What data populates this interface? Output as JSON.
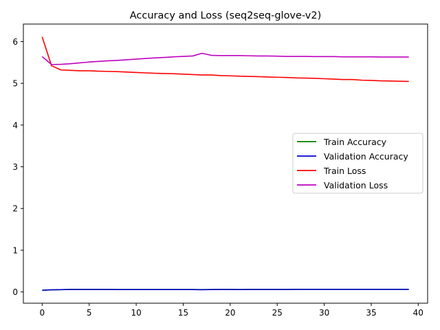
{
  "chart_data": {
    "type": "line",
    "title": "Accuracy and Loss (seq2seq-glove-v2)",
    "xlabel": "",
    "ylabel": "",
    "xlim": [
      -2,
      41
    ],
    "ylim": [
      -0.27,
      6.42
    ],
    "xticks": [
      0,
      5,
      10,
      15,
      20,
      25,
      30,
      35,
      40
    ],
    "yticks": [
      0,
      1,
      2,
      3,
      4,
      5,
      6
    ],
    "grid": false,
    "legend_position": "center-right",
    "x": [
      0,
      1,
      2,
      3,
      4,
      5,
      6,
      7,
      8,
      9,
      10,
      11,
      12,
      13,
      14,
      15,
      16,
      17,
      18,
      19,
      20,
      21,
      22,
      23,
      24,
      25,
      26,
      27,
      28,
      29,
      30,
      31,
      32,
      33,
      34,
      35,
      36,
      37,
      38,
      39
    ],
    "series": [
      {
        "name": "Train Accuracy",
        "color": "#008000",
        "values": [
          0.04,
          0.05,
          0.055,
          0.06,
          0.06,
          0.06,
          0.06,
          0.06,
          0.058,
          0.058,
          0.058,
          0.058,
          0.058,
          0.058,
          0.058,
          0.058,
          0.058,
          0.056,
          0.058,
          0.06,
          0.06,
          0.058,
          0.06,
          0.06,
          0.06,
          0.06,
          0.06,
          0.062,
          0.062,
          0.062,
          0.062,
          0.062,
          0.062,
          0.062,
          0.062,
          0.062,
          0.062,
          0.062,
          0.062,
          0.062
        ]
      },
      {
        "name": "Validation Accuracy",
        "color": "#0000cc",
        "values": [
          0.04,
          0.05,
          0.055,
          0.058,
          0.058,
          0.058,
          0.058,
          0.058,
          0.056,
          0.056,
          0.056,
          0.056,
          0.056,
          0.056,
          0.056,
          0.056,
          0.056,
          0.052,
          0.056,
          0.058,
          0.058,
          0.056,
          0.058,
          0.058,
          0.058,
          0.058,
          0.058,
          0.06,
          0.06,
          0.06,
          0.06,
          0.06,
          0.06,
          0.06,
          0.06,
          0.06,
          0.06,
          0.06,
          0.06,
          0.06
        ]
      },
      {
        "name": "Train Loss",
        "color": "#ff0000",
        "values": [
          6.11,
          5.42,
          5.32,
          5.31,
          5.3,
          5.3,
          5.29,
          5.285,
          5.28,
          5.27,
          5.26,
          5.25,
          5.24,
          5.235,
          5.23,
          5.22,
          5.21,
          5.2,
          5.2,
          5.185,
          5.18,
          5.17,
          5.165,
          5.16,
          5.15,
          5.145,
          5.14,
          5.13,
          5.125,
          5.12,
          5.11,
          5.1,
          5.09,
          5.09,
          5.075,
          5.07,
          5.06,
          5.055,
          5.05,
          5.045
        ]
      },
      {
        "name": "Validation Loss",
        "color": "#bf00bf",
        "values": [
          5.64,
          5.45,
          5.455,
          5.47,
          5.49,
          5.51,
          5.525,
          5.54,
          5.55,
          5.565,
          5.58,
          5.595,
          5.61,
          5.62,
          5.635,
          5.645,
          5.655,
          5.72,
          5.67,
          5.665,
          5.665,
          5.665,
          5.66,
          5.655,
          5.655,
          5.65,
          5.645,
          5.645,
          5.645,
          5.64,
          5.64,
          5.64,
          5.635,
          5.635,
          5.635,
          5.635,
          5.63,
          5.63,
          5.63,
          5.63
        ]
      }
    ]
  }
}
